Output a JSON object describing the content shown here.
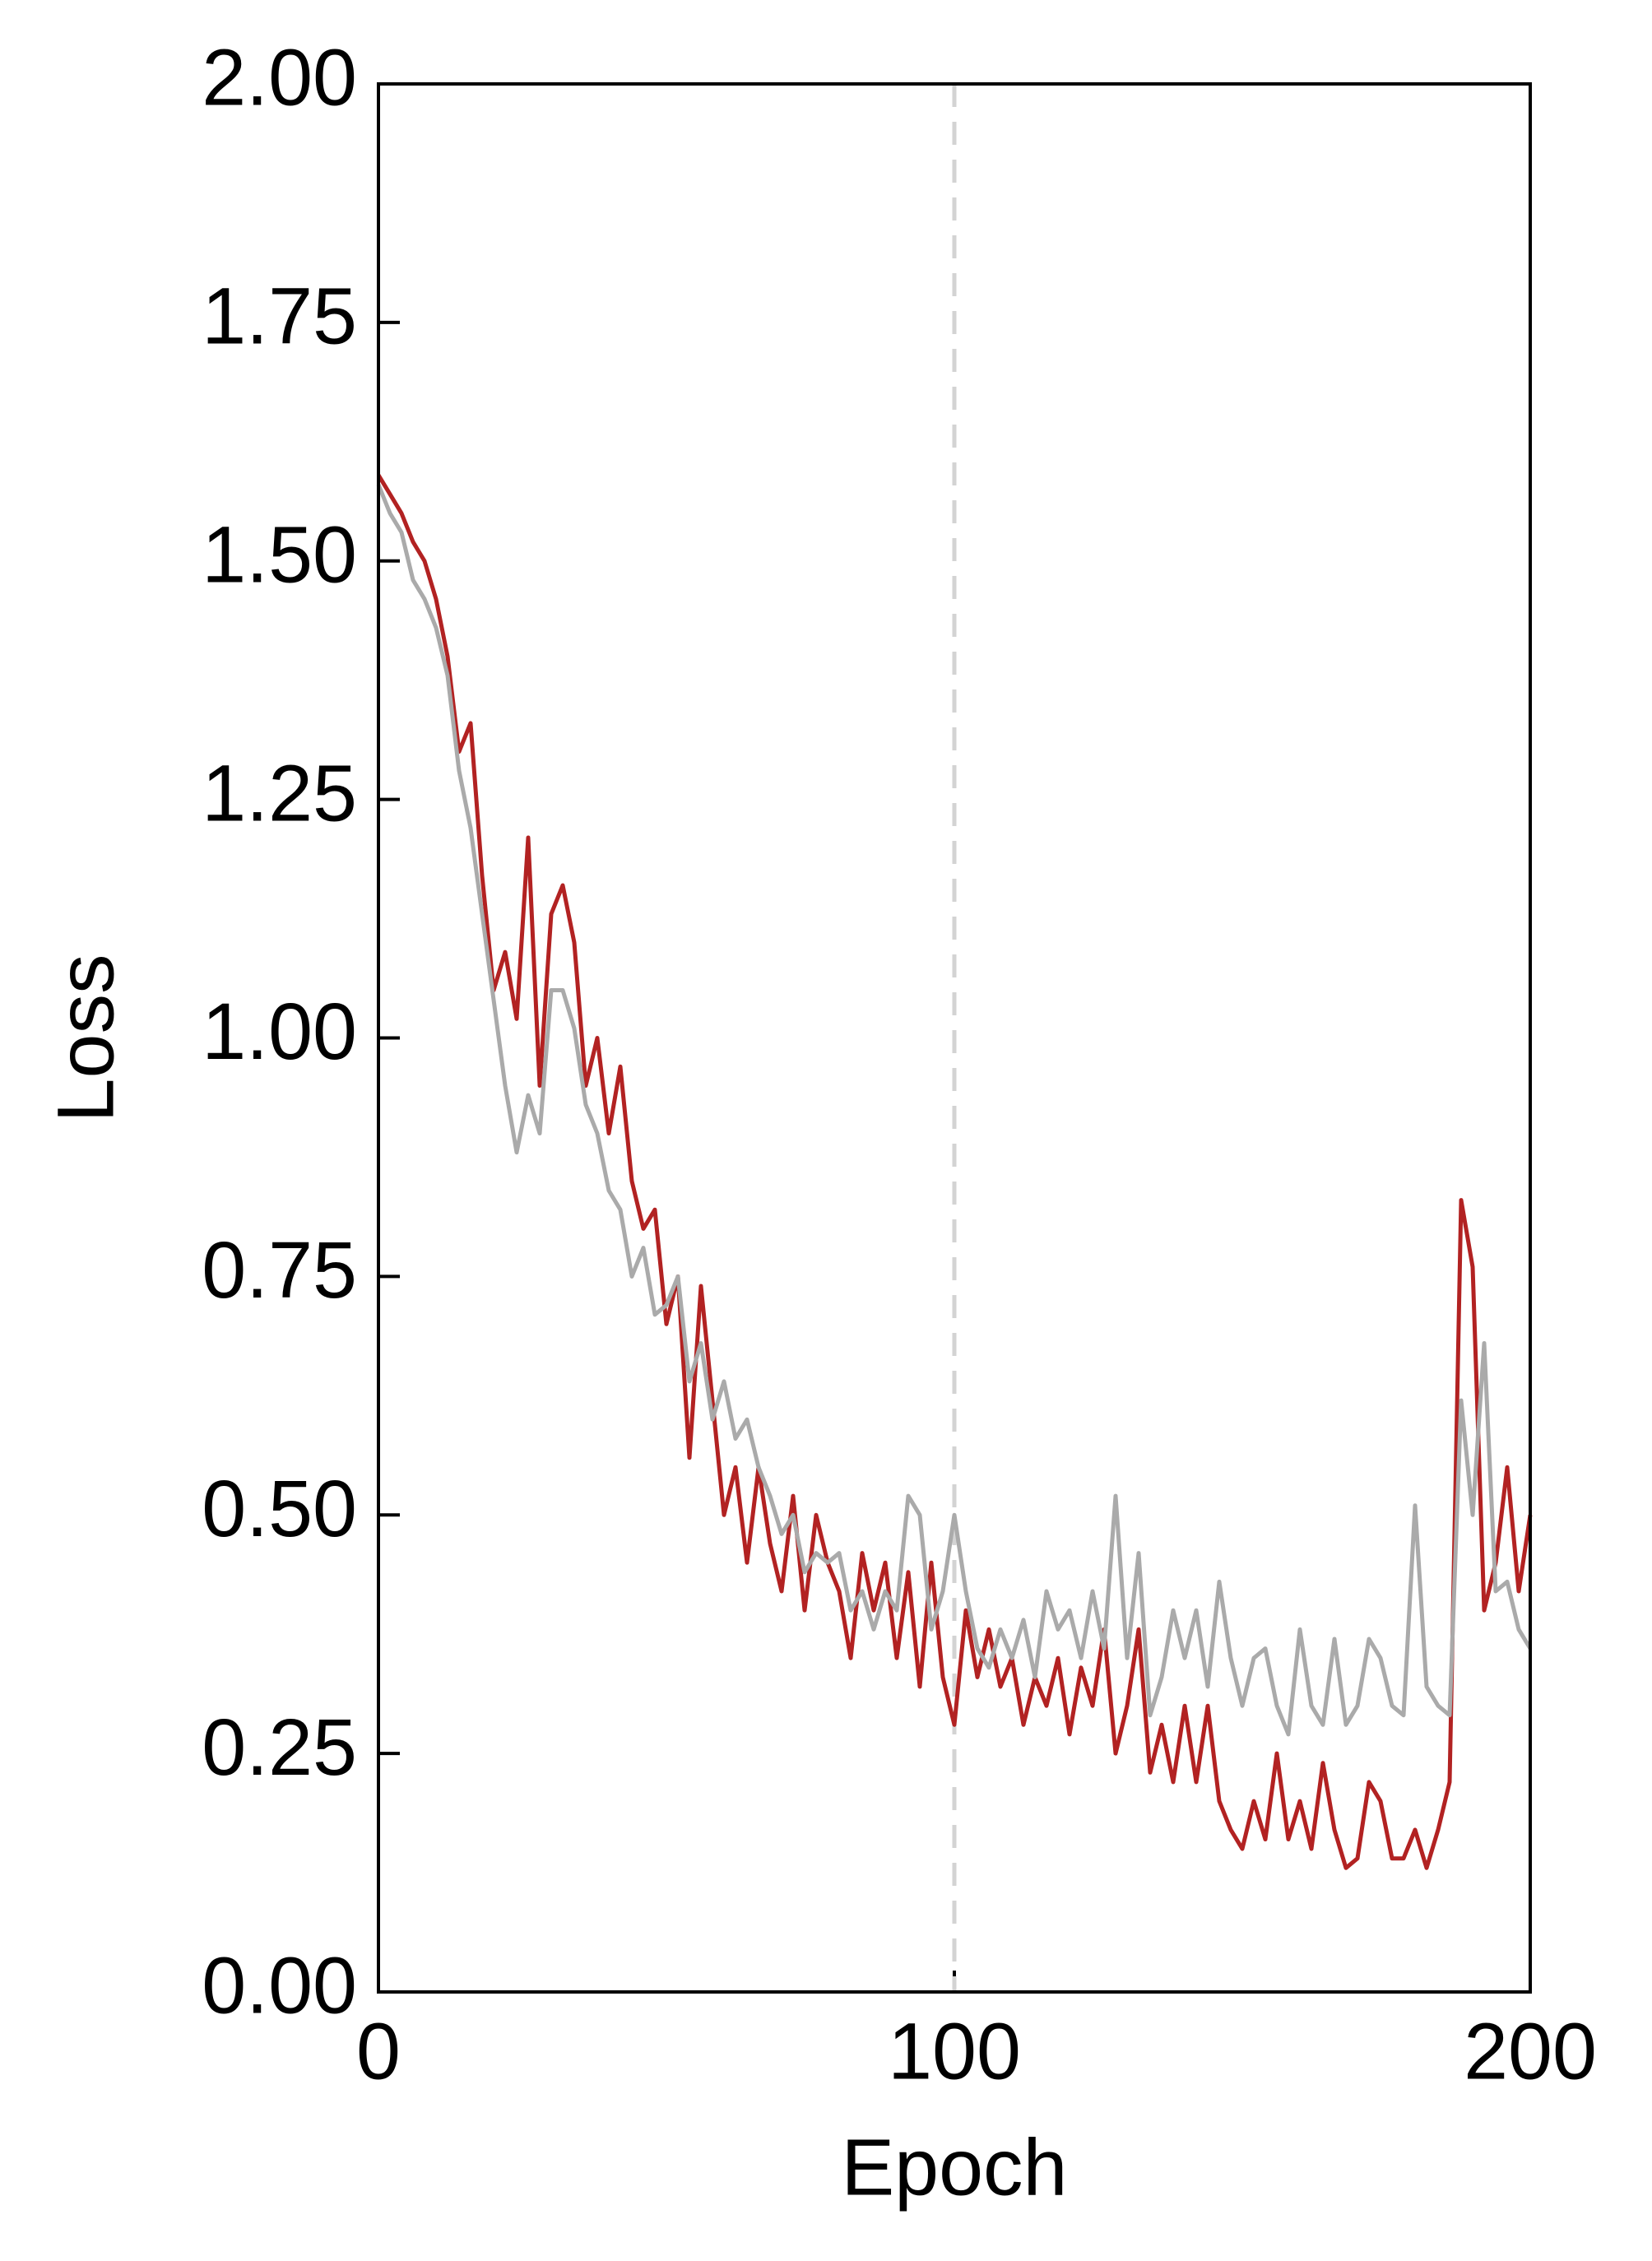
{
  "chart_data": {
    "type": "line",
    "x_label": "Epoch",
    "y_label": "Loss",
    "x": [
      0,
      2,
      4,
      6,
      8,
      10,
      12,
      14,
      16,
      18,
      20,
      22,
      24,
      26,
      28,
      30,
      32,
      34,
      36,
      38,
      40,
      42,
      44,
      46,
      48,
      50,
      52,
      54,
      56,
      58,
      60,
      62,
      64,
      66,
      68,
      70,
      72,
      74,
      76,
      78,
      80,
      82,
      84,
      86,
      88,
      90,
      92,
      94,
      96,
      98,
      100,
      102,
      104,
      106,
      108,
      110,
      112,
      114,
      116,
      118,
      120,
      122,
      124,
      126,
      128,
      130,
      132,
      134,
      136,
      138,
      140,
      142,
      144,
      146,
      148,
      150,
      152,
      154,
      156,
      158,
      160,
      162,
      164,
      166,
      168,
      170,
      172,
      174,
      176,
      178,
      180,
      182,
      184,
      186,
      188,
      190,
      192,
      194,
      196,
      198,
      200
    ],
    "series": [
      {
        "color": "#b22222",
        "values": [
          1.59,
          1.57,
          1.55,
          1.52,
          1.5,
          1.46,
          1.4,
          1.3,
          1.33,
          1.17,
          1.05,
          1.09,
          1.02,
          1.21,
          0.95,
          1.13,
          1.16,
          1.1,
          0.95,
          1.0,
          0.9,
          0.97,
          0.85,
          0.8,
          0.82,
          0.7,
          0.75,
          0.56,
          0.74,
          0.62,
          0.5,
          0.55,
          0.45,
          0.55,
          0.47,
          0.42,
          0.52,
          0.4,
          0.5,
          0.45,
          0.42,
          0.35,
          0.46,
          0.4,
          0.45,
          0.35,
          0.44,
          0.32,
          0.45,
          0.33,
          0.28,
          0.4,
          0.33,
          0.38,
          0.32,
          0.35,
          0.28,
          0.33,
          0.3,
          0.35,
          0.27,
          0.34,
          0.3,
          0.38,
          0.25,
          0.3,
          0.38,
          0.23,
          0.28,
          0.22,
          0.3,
          0.22,
          0.3,
          0.2,
          0.17,
          0.15,
          0.2,
          0.16,
          0.25,
          0.16,
          0.2,
          0.15,
          0.24,
          0.17,
          0.13,
          0.14,
          0.22,
          0.2,
          0.14,
          0.14,
          0.17,
          0.13,
          0.17,
          0.22,
          0.83,
          0.76,
          0.4,
          0.45,
          0.55,
          0.42,
          0.5
        ]
      },
      {
        "color": "#aaaaaa",
        "values": [
          1.58,
          1.55,
          1.53,
          1.48,
          1.46,
          1.43,
          1.38,
          1.28,
          1.22,
          1.13,
          1.04,
          0.95,
          0.88,
          0.94,
          0.9,
          1.05,
          1.05,
          1.01,
          0.93,
          0.9,
          0.84,
          0.82,
          0.75,
          0.78,
          0.71,
          0.72,
          0.75,
          0.64,
          0.68,
          0.6,
          0.64,
          0.58,
          0.6,
          0.55,
          0.52,
          0.48,
          0.5,
          0.44,
          0.46,
          0.45,
          0.46,
          0.4,
          0.42,
          0.38,
          0.42,
          0.4,
          0.52,
          0.5,
          0.38,
          0.42,
          0.5,
          0.42,
          0.36,
          0.34,
          0.38,
          0.35,
          0.39,
          0.33,
          0.42,
          0.38,
          0.4,
          0.35,
          0.42,
          0.36,
          0.52,
          0.35,
          0.46,
          0.29,
          0.33,
          0.4,
          0.35,
          0.4,
          0.32,
          0.43,
          0.35,
          0.3,
          0.35,
          0.36,
          0.3,
          0.27,
          0.38,
          0.3,
          0.28,
          0.37,
          0.28,
          0.3,
          0.37,
          0.35,
          0.3,
          0.29,
          0.51,
          0.32,
          0.3,
          0.29,
          0.62,
          0.5,
          0.68,
          0.42,
          0.43,
          0.38,
          0.36
        ]
      }
    ],
    "vline": {
      "x": 100,
      "color": "#d3d3d3",
      "dashed": true
    },
    "xlim": [
      0,
      200
    ],
    "xticks": [
      0,
      100,
      200
    ],
    "ylim": [
      0,
      2
    ],
    "yticks": [
      {
        "value": 0,
        "label": "0.00"
      },
      {
        "value": 0.25,
        "label": "0.25"
      },
      {
        "value": 0.5,
        "label": "0.50"
      },
      {
        "value": 0.75,
        "label": "0.75"
      },
      {
        "value": 1,
        "label": "1.00"
      },
      {
        "value": 1.25,
        "label": "1.25"
      },
      {
        "value": 1.5,
        "label": "1.50"
      },
      {
        "value": 1.75,
        "label": "1.75"
      },
      {
        "value": 2,
        "label": "2.00"
      }
    ],
    "grid": false
  }
}
